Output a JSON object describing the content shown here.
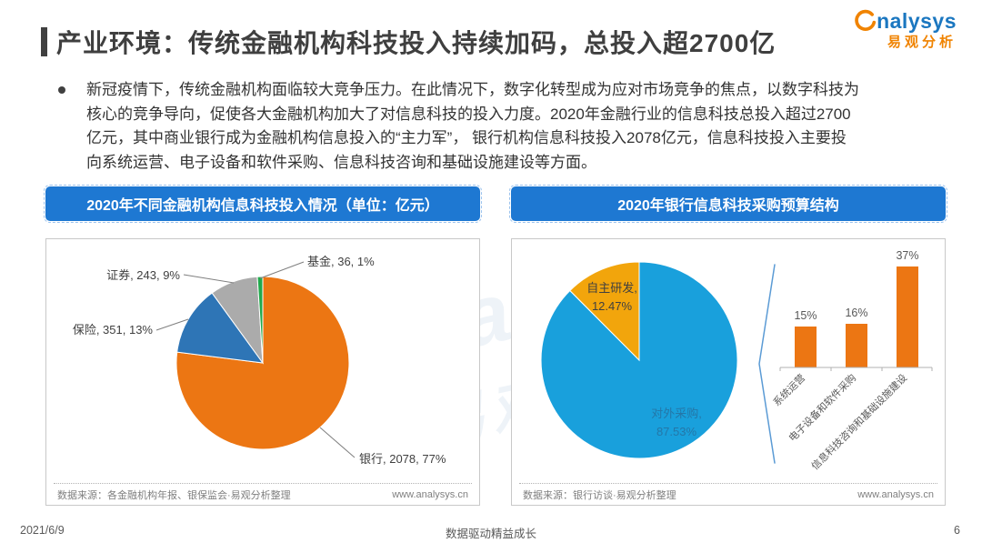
{
  "page": {
    "title": "产业环境：传统金融机构科技投入持续加码，总投入超2700亿",
    "logo": {
      "brand": "analysys",
      "brand_wordmark": "nalysys",
      "brand_cn": "易观分析"
    },
    "paragraph": "新冠疫情下，传统金融机构面临较大竞争压力。在此情况下，数字化转型成为应对市场竞争的焦点，以数字科技为\n核心的竞争导向，促使各大金融机构加大了对信息科技的投入力度。2020年金融行业的信息科技总投入超过2700\n亿元，其中商业银行成为金融机构信息投入的“主力军”， 银行机构信息科技投入2078亿元，信息科技投入主要投\n向系统运营、电子设备和软件采购、信息科技咨询和基础设施建设等方面。",
    "footer": {
      "date": "2021/6/9",
      "slogan": "数据驱动精益成长",
      "page_number": "6"
    }
  },
  "panels": {
    "left": {
      "header": "2020年不同金融机构信息科技投入情况（单位：亿元）",
      "source": "数据来源：各金融机构年报、银保监会·易观分析整理",
      "site": "www.analysys.cn"
    },
    "right": {
      "header": "2020年银行信息科技采购预算结构",
      "source": "数据来源：银行访谈·易观分析整理",
      "site": "www.analysys.cn"
    }
  },
  "theme": {
    "header_blue": "#1E78D2",
    "title_gray": "#3F3F3F",
    "logo_orange": "#F08300",
    "logo_blue": "#1B77C0",
    "axis_gray": "#B0B0B0",
    "leader_line_gray": "#7F7F7F",
    "brace_blue": "#5B9BD5"
  },
  "chart_data": [
    {
      "type": "pie",
      "title": "2020年不同金融机构信息科技投入情况",
      "unit": "亿元",
      "start_angle_deg": 0,
      "clockwise": true,
      "slices": [
        {
          "label": "银行",
          "value": 2078,
          "pct": 77,
          "color": "#EC7613",
          "label_text": "银行, 2078, 77%"
        },
        {
          "label": "保险",
          "value": 351,
          "pct": 13,
          "color": "#2E75B6",
          "label_text": "保险, 351, 13%"
        },
        {
          "label": "证券",
          "value": 243,
          "pct": 9,
          "color": "#ABABAB",
          "label_text": "证券, 243, 9%"
        },
        {
          "label": "基金",
          "value": 36,
          "pct": 1,
          "color": "#21A94C",
          "label_text": "基金, 36, 1%"
        }
      ]
    },
    {
      "type": "pie",
      "title": "2020年银行信息科技采购预算结构",
      "start_angle_deg": 0,
      "clockwise": true,
      "slices": [
        {
          "label": "对外采购",
          "pct": 87.53,
          "color": "#19A0DC",
          "label_lines": [
            "对外采购,",
            "87.53%"
          ],
          "label_color": "#2477A8"
        },
        {
          "label": "自主研发",
          "pct": 12.47,
          "color": "#F2A50C",
          "label_lines": [
            "自主研发,",
            "12.47%"
          ],
          "label_color": "#404040"
        }
      ]
    },
    {
      "type": "bar",
      "title": "对外采购明细",
      "categories": [
        "系统运营",
        "电子设备和软件采购",
        "信息科技咨询和基础设施建设"
      ],
      "values": [
        15,
        16,
        37
      ],
      "value_labels": [
        "15%",
        "16%",
        "37%"
      ],
      "unit": "%",
      "bar_color": "#EC7613",
      "ylim": [
        0,
        40
      ],
      "grid": false,
      "legend": "none"
    }
  ]
}
